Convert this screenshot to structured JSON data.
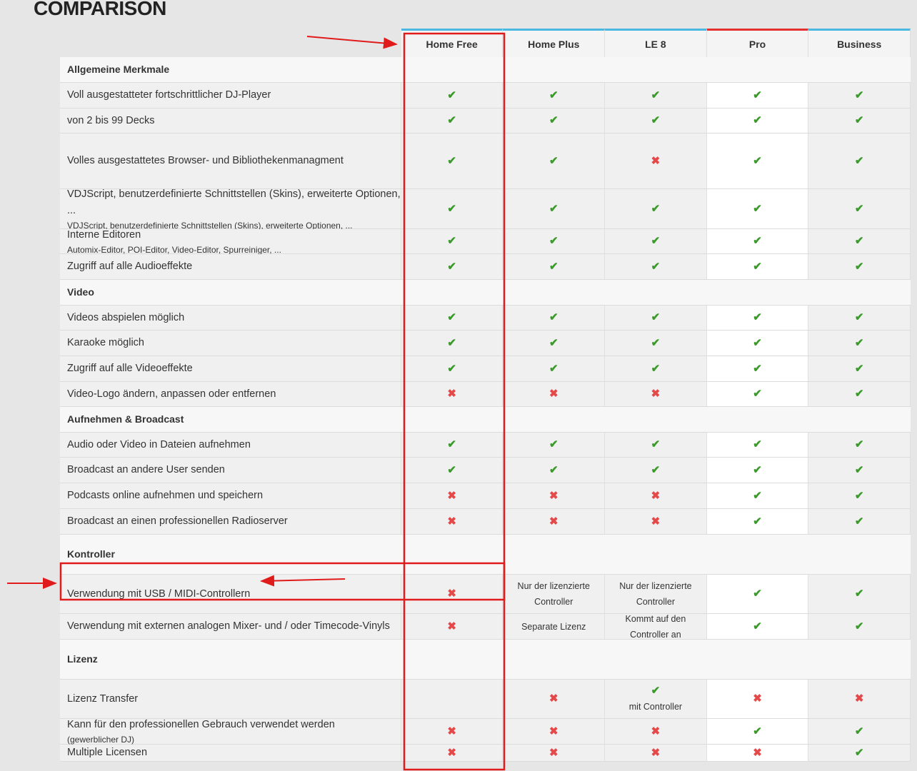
{
  "title": "COMPARISON",
  "columns": [
    "Home Free",
    "Home Plus",
    "LE 8",
    "Pro",
    "Business"
  ],
  "colors": {
    "check": "#3a9a2a",
    "cross": "#e54848",
    "header_accent": "#4ab8e0",
    "pro_accent": "#e53030",
    "annotation": "#e01b1b"
  },
  "icons": {
    "check": "check-icon",
    "cross": "cross-icon"
  },
  "rows": [
    {
      "section": "Allgemeine Merkmale"
    },
    {
      "label": "Voll ausgestatteter fortschrittlicher DJ-Player",
      "values": [
        "check",
        "check",
        "check",
        "check",
        "check"
      ]
    },
    {
      "label": "von 2 bis 99 Decks",
      "values": [
        "check",
        "check",
        "check",
        "check",
        "check"
      ]
    },
    {
      "label": "Volles ausgestattetes Browser- und Bibliothekenmanagment",
      "values": [
        "check",
        "check",
        "cross",
        "check",
        "check"
      ]
    },
    {
      "label": "VDJScript, benutzerdefinierte Schnittstellen (Skins), erweiterte Optionen, ...",
      "sub": "VDJScript, benutzerdefinierte Schnittstellen (Skins), erweiterte Optionen, ...",
      "values": [
        "check",
        "check",
        "check",
        "check",
        "check"
      ]
    },
    {
      "label": "Interne Editoren",
      "sub": "Automix-Editor, POI-Editor, Video-Editor, Spurreiniger, ...",
      "values": [
        "check",
        "check",
        "check",
        "check",
        "check"
      ]
    },
    {
      "label": "Zugriff auf alle Audioeffekte",
      "values": [
        "check",
        "check",
        "check",
        "check",
        "check"
      ]
    },
    {
      "section": "Video"
    },
    {
      "label": "Videos abspielen möglich",
      "values": [
        "check",
        "check",
        "check",
        "check",
        "check"
      ]
    },
    {
      "label": "Karaoke möglich",
      "values": [
        "check",
        "check",
        "check",
        "check",
        "check"
      ]
    },
    {
      "label": "Zugriff auf alle Videoeffekte",
      "values": [
        "check",
        "check",
        "check",
        "check",
        "check"
      ]
    },
    {
      "label": "Video-Logo ändern, anpassen oder entfernen",
      "values": [
        "cross",
        "cross",
        "cross",
        "check",
        "check"
      ]
    },
    {
      "section": "Aufnehmen & Broadcast"
    },
    {
      "label": "Audio oder Video in Dateien aufnehmen",
      "values": [
        "check",
        "check",
        "check",
        "check",
        "check"
      ]
    },
    {
      "label": "Broadcast an andere User senden",
      "values": [
        "check",
        "check",
        "check",
        "check",
        "check"
      ]
    },
    {
      "label": "Podcasts online aufnehmen und speichern",
      "values": [
        "cross",
        "cross",
        "cross",
        "check",
        "check"
      ]
    },
    {
      "label": "Broadcast an einen professionellen Radioserver",
      "values": [
        "cross",
        "cross",
        "cross",
        "check",
        "check"
      ]
    },
    {
      "section": "Kontroller"
    },
    {
      "label": "Verwendung mit USB / MIDI-Controllern",
      "values": [
        "cross",
        "Nur der lizenzierte Controller",
        "Nur der lizenzierte Controller",
        "check",
        "check"
      ]
    },
    {
      "label": "Verwendung mit externen analogen Mixer- und / oder Timecode-Vinyls",
      "values": [
        "cross",
        "Separate Lizenz",
        "Kommt auf den Controller an",
        "check",
        "check"
      ]
    },
    {
      "section": "Lizenz"
    },
    {
      "label": "Lizenz Transfer",
      "values": [
        "",
        "cross",
        "check|mit Controller",
        "cross",
        "cross"
      ]
    },
    {
      "label": "Kann für den professionellen Gebrauch verwendet werden",
      "sub": "(gewerblicher DJ)",
      "values": [
        "cross",
        "cross",
        "cross",
        "check",
        "check"
      ]
    },
    {
      "label": "Multiple Licensen",
      "values": [
        "cross",
        "cross",
        "cross",
        "cross",
        "check"
      ]
    }
  ]
}
